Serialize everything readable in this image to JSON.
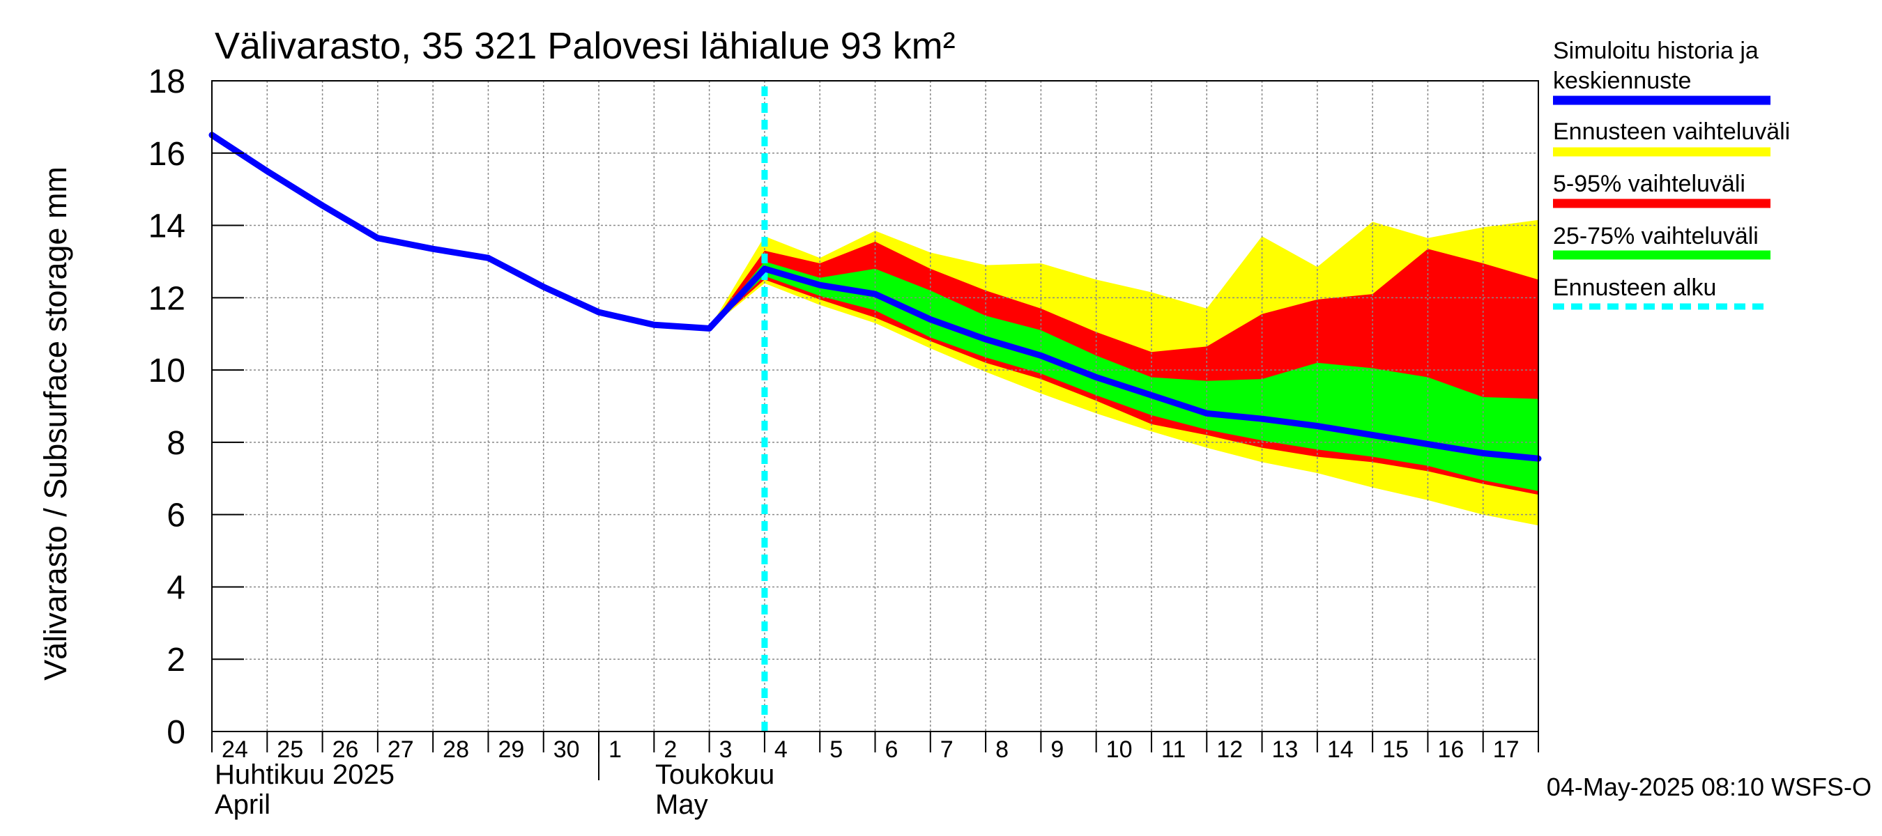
{
  "chart_data": {
    "type": "area",
    "title": "Välivarasto, 35 321 Palovesi lähialue 93 km²",
    "ylabel": "Välivarasto / Subsurface storage  mm",
    "ylim": [
      0,
      18
    ],
    "yticks": [
      "0",
      "2",
      "4",
      "6",
      "8",
      "10",
      "12",
      "14",
      "16",
      "18"
    ],
    "xlim": [
      "2025-04-24",
      "2025-05-18"
    ],
    "day_labels": [
      "24",
      "25",
      "26",
      "27",
      "28",
      "29",
      "30",
      "1",
      "2",
      "3",
      "4",
      "5",
      "6",
      "7",
      "8",
      "9",
      "10",
      "11",
      "12",
      "13",
      "14",
      "15",
      "16",
      "17"
    ],
    "month_labels": [
      {
        "fi": "Huhtikuu  2025",
        "en": "April",
        "start": "2025-04-24"
      },
      {
        "fi": "Toukokuu",
        "en": "May",
        "start": "2025-05-01"
      }
    ],
    "forecast_start": "2025-05-04",
    "grid": true,
    "legend_position": "right",
    "timestamp": "04-May-2025 08:10 WSFS-O",
    "colors": {
      "history": "#0000ff",
      "range_full": "#ffff00",
      "range_5_95": "#ff0000",
      "range_25_75": "#00ff00",
      "forecast_start": "#00ffff",
      "grid": "#888888"
    },
    "legend": [
      {
        "label": "Simuloitu historia ja keskiennuste",
        "lines": [
          "Simuloitu historia ja",
          "keskiennuste"
        ],
        "color": "#0000ff",
        "style": "solid"
      },
      {
        "label": "Ennusteen vaihteluväli",
        "lines": [
          "Ennusteen vaihteluväli"
        ],
        "color": "#ffff00",
        "style": "solid"
      },
      {
        "label": "5-95% vaihteluväli",
        "lines": [
          "5-95% vaihteluväli"
        ],
        "color": "#ff0000",
        "style": "solid"
      },
      {
        "label": "25-75% vaihteluväli",
        "lines": [
          "25-75% vaihteluväli"
        ],
        "color": "#00ff00",
        "style": "solid"
      },
      {
        "label": "Ennusteen alku",
        "lines": [
          "Ennusteen alku"
        ],
        "color": "#00ffff",
        "style": "dashed"
      }
    ],
    "history": {
      "x": [
        "2025-04-24",
        "2025-04-25",
        "2025-04-26",
        "2025-04-27",
        "2025-04-28",
        "2025-04-29",
        "2025-04-30",
        "2025-05-01",
        "2025-05-02",
        "2025-05-03",
        "2025-05-04"
      ],
      "y": [
        16.5,
        15.5,
        14.55,
        13.65,
        13.35,
        13.1,
        12.3,
        11.6,
        11.25,
        11.15,
        12.8
      ]
    },
    "forecast": {
      "x": [
        "2025-05-04",
        "2025-05-05",
        "2025-05-06",
        "2025-05-07",
        "2025-05-08",
        "2025-05-09",
        "2025-05-10",
        "2025-05-11",
        "2025-05-12",
        "2025-05-13",
        "2025-05-14",
        "2025-05-15",
        "2025-05-16",
        "2025-05-17",
        "2025-05-18"
      ],
      "median": [
        12.8,
        12.35,
        12.1,
        11.4,
        10.85,
        10.4,
        9.8,
        9.3,
        8.8,
        8.65,
        8.45,
        8.2,
        7.95,
        7.7,
        7.55
      ],
      "p25": [
        12.6,
        12.05,
        11.65,
        10.9,
        10.35,
        9.9,
        9.3,
        8.75,
        8.35,
        8.05,
        7.8,
        7.6,
        7.35,
        6.95,
        6.65
      ],
      "p75": [
        13.0,
        12.55,
        12.8,
        12.2,
        11.5,
        11.1,
        10.4,
        9.8,
        9.7,
        9.75,
        10.2,
        10.05,
        9.8,
        9.25,
        9.2
      ],
      "p5": [
        12.5,
        11.95,
        11.45,
        10.8,
        10.2,
        9.75,
        9.15,
        8.5,
        8.2,
        7.85,
        7.6,
        7.45,
        7.2,
        6.85,
        6.55
      ],
      "p95": [
        13.3,
        12.95,
        13.55,
        12.8,
        12.2,
        11.7,
        11.05,
        10.5,
        10.65,
        11.55,
        11.95,
        12.1,
        13.35,
        12.95,
        12.5
      ],
      "min": [
        12.4,
        11.8,
        11.3,
        10.6,
        9.95,
        9.35,
        8.8,
        8.3,
        7.85,
        7.45,
        7.15,
        6.75,
        6.4,
        6.0,
        5.7
      ],
      "max": [
        13.7,
        13.1,
        13.85,
        13.25,
        12.9,
        12.95,
        12.5,
        12.15,
        11.7,
        13.7,
        12.85,
        14.1,
        13.65,
        13.95,
        14.15
      ]
    }
  }
}
